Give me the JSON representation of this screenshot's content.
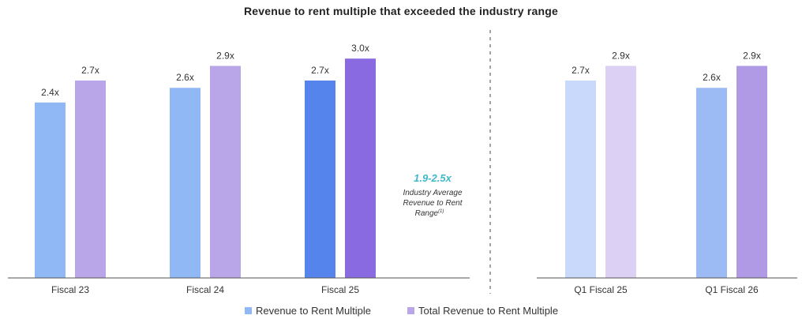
{
  "title": "Revenue to rent multiple that exceeded the industry range",
  "colors": {
    "left_rev": [
      "#8fb8f5",
      "#8fb8f5",
      "#5584ec"
    ],
    "left_total": [
      "#b9a6e8",
      "#b9a6e8",
      "#8a6ae0"
    ],
    "right_rev": [
      "#c8d9fb",
      "#9cbaf4"
    ],
    "right_total": [
      "#dcd0f5",
      "#b09ae6"
    ],
    "legend_rev": "#8fb8f5",
    "legend_total": "#b9a6e8",
    "callout": "#3fb8c9",
    "axis": "#555555",
    "divider": "#666666"
  },
  "callout": {
    "range": "1.9-2.5x",
    "lines": [
      "Industry Average",
      "Revenue to Rent",
      "Range"
    ],
    "superscript": "(1)"
  },
  "chart_data": {
    "type": "bar",
    "title": "Revenue to rent multiple that exceeded the industry range",
    "ylim": [
      0,
      3.4
    ],
    "xlabel": "",
    "ylabel": "",
    "grid": false,
    "legend_position": "bottom-center",
    "series_names": [
      "Revenue to Rent Multiple",
      "Total Revenue to Rent Multiple"
    ],
    "panels": [
      {
        "categories": [
          "Fiscal 23",
          "Fiscal 24",
          "Fiscal 25"
        ],
        "series": [
          {
            "name": "Revenue to Rent Multiple",
            "values": [
              2.4,
              2.6,
              2.7
            ],
            "labels": [
              "2.4x",
              "2.6x",
              "2.7x"
            ]
          },
          {
            "name": "Total Revenue to Rent Multiple",
            "values": [
              2.7,
              2.9,
              3.0
            ],
            "labels": [
              "2.7x",
              "2.9x",
              "3.0x"
            ]
          }
        ]
      },
      {
        "categories": [
          "Q1 Fiscal 25",
          "Q1 Fiscal 26"
        ],
        "series": [
          {
            "name": "Revenue to Rent Multiple",
            "values": [
              2.7,
              2.6
            ],
            "labels": [
              "2.7x",
              "2.6x"
            ]
          },
          {
            "name": "Total Revenue to Rent Multiple",
            "values": [
              2.9,
              2.9
            ],
            "labels": [
              "2.9x",
              "2.9x"
            ]
          }
        ]
      }
    ]
  }
}
